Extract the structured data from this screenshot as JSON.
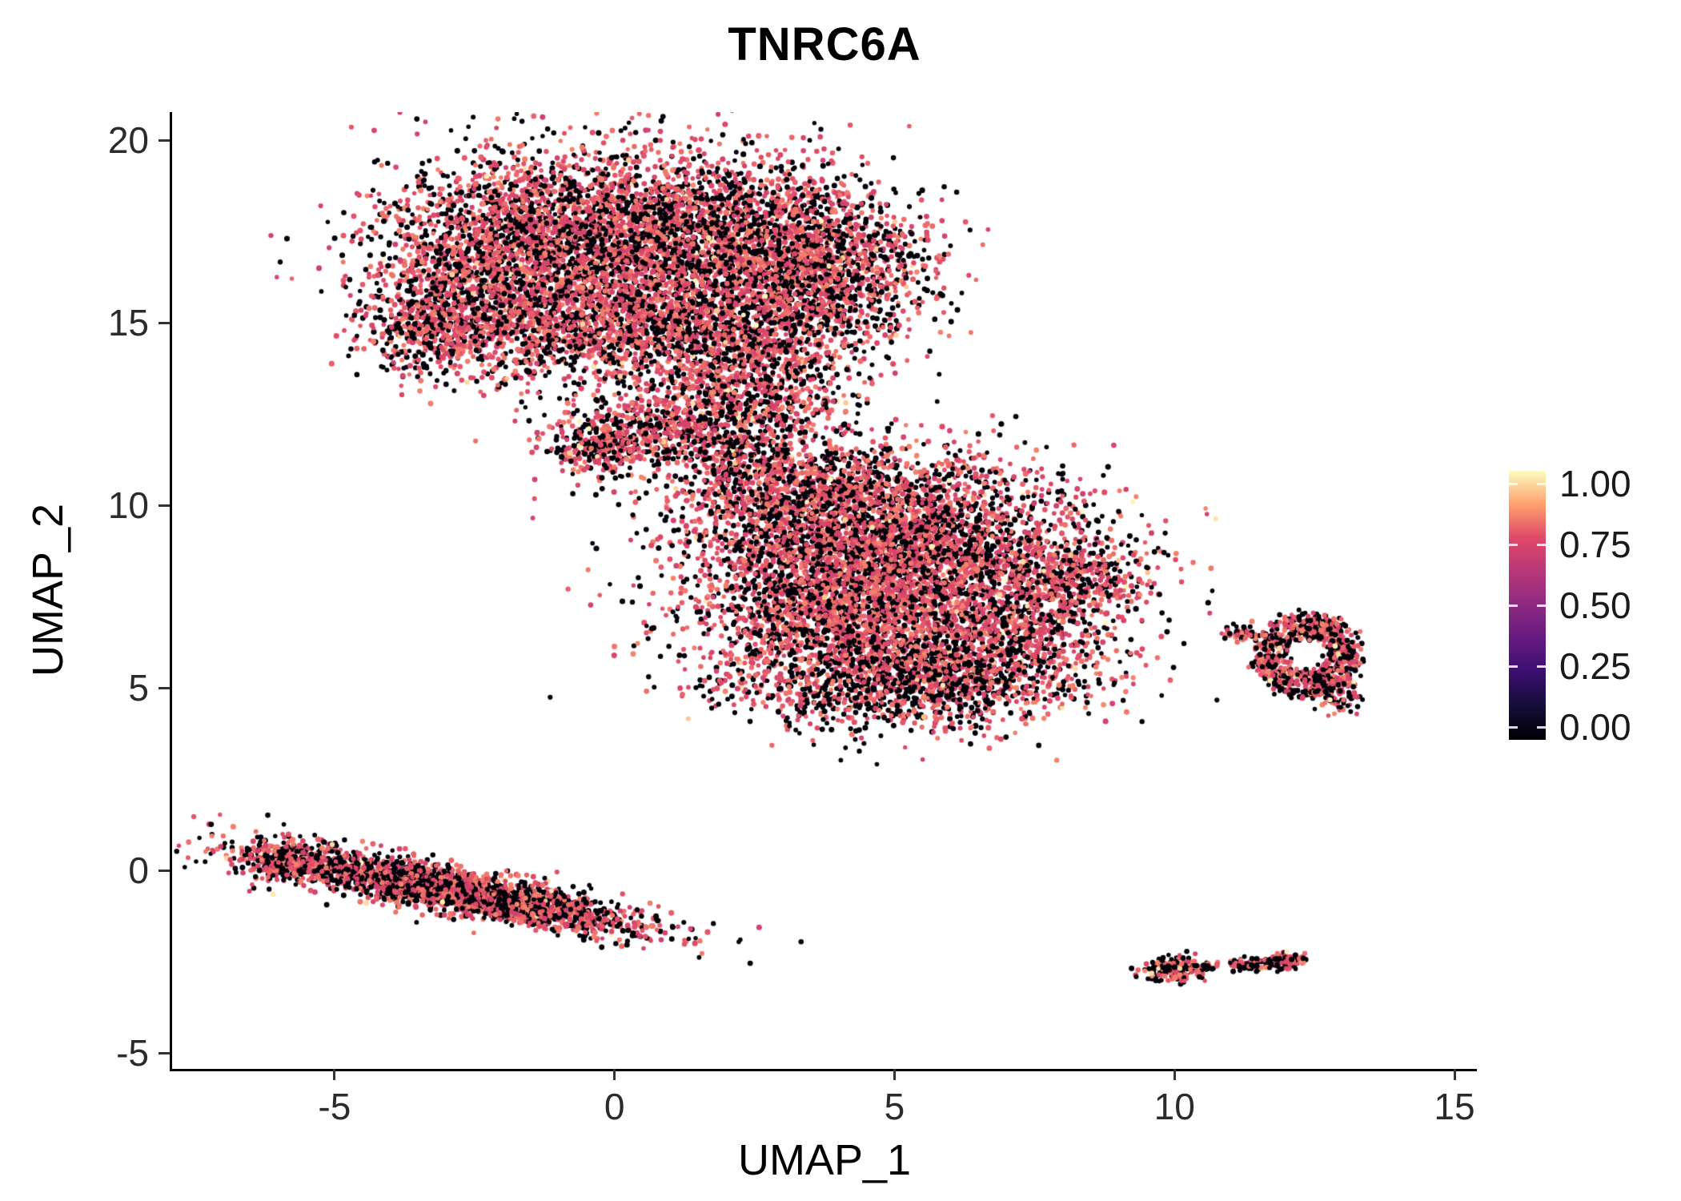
{
  "chart_data": {
    "type": "scatter",
    "title": "TNRC6A",
    "xlabel": "UMAP_1",
    "ylabel": "UMAP_2",
    "xlim": [
      -7.9,
      15.4
    ],
    "ylim": [
      -5.43,
      20.77
    ],
    "x_ticks": [
      "-5",
      "0",
      "5",
      "10",
      "15"
    ],
    "y_ticks": [
      "-5",
      "0",
      "5",
      "10",
      "15",
      "20"
    ],
    "background_color": "#ffffff",
    "axis_color": "#000000",
    "colorbar": {
      "ticks": [
        "1.00",
        "0.75",
        "0.50",
        "0.25",
        "0.00"
      ],
      "stops": [
        [
          0.0,
          "#000004"
        ],
        [
          0.125,
          "#140e36"
        ],
        [
          0.25,
          "#3b0f70"
        ],
        [
          0.375,
          "#641a80"
        ],
        [
          0.5,
          "#8c2981"
        ],
        [
          0.625,
          "#b73779"
        ],
        [
          0.75,
          "#de4968"
        ],
        [
          0.875,
          "#fe9f6d"
        ],
        [
          1.0,
          "#fcfdbf"
        ]
      ]
    },
    "point_style": {
      "radius_px": 3.1,
      "value_ranges": {
        "black": [
          0.0,
          0.03
        ],
        "mid": [
          0.7,
          0.84
        ],
        "light": [
          0.92,
          1.0
        ]
      }
    },
    "clusters": [
      {
        "name": "upper-left-large-blob",
        "black_frac": 0.4,
        "light_frac": 0.015,
        "blobs": [
          {
            "cx": -2.2,
            "cy": 16.6,
            "sx": 1.2,
            "sy": 1.4,
            "n": 1700
          },
          {
            "cx": 0.0,
            "cy": 17.6,
            "sx": 1.5,
            "sy": 1.1,
            "n": 2000
          },
          {
            "cx": 2.6,
            "cy": 17.0,
            "sx": 1.3,
            "sy": 1.2,
            "n": 1800
          },
          {
            "cx": 4.0,
            "cy": 16.2,
            "sx": 0.8,
            "sy": 1.1,
            "n": 800
          },
          {
            "cx": -0.5,
            "cy": 15.0,
            "sx": 1.4,
            "sy": 0.8,
            "n": 1100
          },
          {
            "cx": 1.8,
            "cy": 14.9,
            "sx": 1.1,
            "sy": 0.9,
            "n": 900
          },
          {
            "cx": -3.3,
            "cy": 14.8,
            "sx": 0.6,
            "sy": 0.6,
            "n": 300
          },
          {
            "cx": 2.3,
            "cy": 13.0,
            "sx": 1.0,
            "sy": 0.8,
            "n": 800
          },
          {
            "cx": 0.8,
            "cy": 12.0,
            "sx": 1.0,
            "sy": 0.55,
            "n": 500
          },
          {
            "cx": -0.2,
            "cy": 11.5,
            "sx": 0.5,
            "sy": 0.35,
            "n": 200
          }
        ]
      },
      {
        "name": "central-large-blob",
        "black_frac": 0.38,
        "light_frac": 0.015,
        "blobs": [
          {
            "cx": 4.2,
            "cy": 9.8,
            "sx": 1.6,
            "sy": 1.05,
            "n": 2000
          },
          {
            "cx": 5.8,
            "cy": 8.2,
            "sx": 1.6,
            "sy": 1.3,
            "n": 2300
          },
          {
            "cx": 3.6,
            "cy": 7.2,
            "sx": 1.2,
            "sy": 1.3,
            "n": 1600
          },
          {
            "cx": 6.6,
            "cy": 6.0,
            "sx": 1.2,
            "sy": 0.9,
            "n": 1000
          },
          {
            "cx": 8.1,
            "cy": 7.9,
            "sx": 0.75,
            "sy": 0.55,
            "n": 400
          },
          {
            "cx": 4.9,
            "cy": 5.0,
            "sx": 1.4,
            "sy": 0.6,
            "n": 800,
            "black_frac": 0.55
          },
          {
            "cx": 2.6,
            "cy": 10.9,
            "sx": 0.7,
            "sy": 0.5,
            "n": 300
          }
        ]
      },
      {
        "name": "right-ring-cluster",
        "black_frac": 0.45,
        "light_frac": 0.02,
        "blobs": [
          {
            "cx": 12.35,
            "cy": 5.9,
            "sx": 0.95,
            "sy": 1.15,
            "n": 760,
            "ring": [
              0.42,
              1.0
            ]
          },
          {
            "cx": 11.2,
            "cy": 6.5,
            "sx": 0.15,
            "sy": 0.1,
            "n": 50
          },
          {
            "cx": 12.95,
            "cy": 4.8,
            "sx": 0.2,
            "sy": 0.25,
            "n": 80
          }
        ]
      },
      {
        "name": "lower-left-stripe",
        "black_frac": 0.44,
        "light_frac": 0.01,
        "blobs": [
          {
            "cx": -2.9,
            "cy": -0.55,
            "sx": 1.7,
            "sy": 0.29,
            "n": 2700,
            "theta": -17
          },
          {
            "cx": -5.9,
            "cy": 0.2,
            "sx": 0.35,
            "sy": 0.3,
            "n": 250
          }
        ]
      },
      {
        "name": "bottom-right-small-clusters",
        "black_frac": 0.5,
        "light_frac": 0.05,
        "blobs": [
          {
            "cx": 10.0,
            "cy": -2.7,
            "sx": 0.3,
            "sy": 0.17,
            "n": 170
          },
          {
            "cx": 10.55,
            "cy": -2.62,
            "sx": 0.08,
            "sy": 0.06,
            "n": 25
          },
          {
            "cx": 11.45,
            "cy": -2.55,
            "sx": 0.3,
            "sy": 0.1,
            "n": 115
          },
          {
            "cx": 12.0,
            "cy": -2.45,
            "sx": 0.18,
            "sy": 0.1,
            "n": 70
          }
        ]
      }
    ],
    "outliers": [
      {
        "x": 6.9,
        "y": 3.6,
        "value": 0.75
      }
    ]
  }
}
